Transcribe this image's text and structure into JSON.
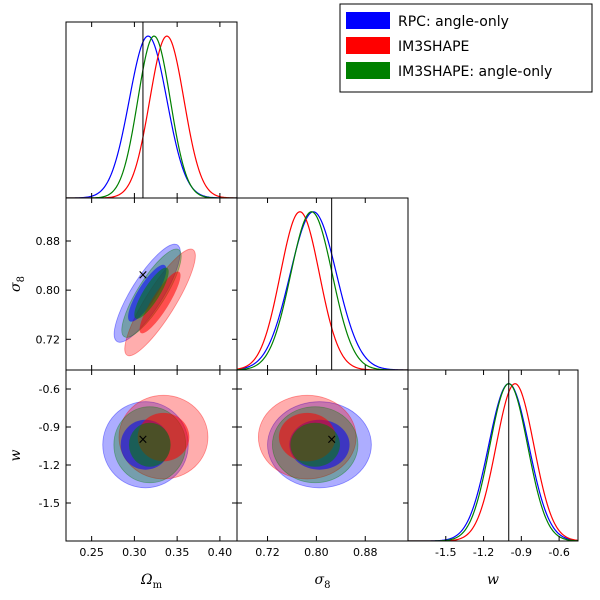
{
  "chart_data": {
    "type": "triangle-corner",
    "parameters": [
      {
        "id": "omega_m",
        "label": "Ω",
        "sub": "m",
        "range": [
          0.22,
          0.42
        ],
        "ticks": [
          "0.25",
          "0.30",
          "0.35",
          "0.40"
        ],
        "truth": 0.31
      },
      {
        "id": "sigma_8",
        "label": "σ",
        "sub": "8",
        "range": [
          0.67,
          0.95
        ],
        "ticks": [
          "0.72",
          "0.80",
          "0.88"
        ],
        "truth": 0.825
      },
      {
        "id": "w",
        "label": "w",
        "sub": "",
        "range": [
          -1.8,
          -0.45
        ],
        "ticks": [
          "-1.5",
          "-1.2",
          "-0.9",
          "-0.6"
        ],
        "truth": -1.0
      }
    ],
    "series": [
      {
        "name": "RPC: angle-only",
        "color": "#0000ff",
        "means": [
          0.316,
          0.795,
          -1.0
        ],
        "sds": [
          0.022,
          0.038,
          0.16
        ],
        "ellipses": [
          {
            "pair": [
              0,
              1
            ],
            "center": [
              0.315,
              0.795
            ],
            "a": [
              0.062,
              0.034
            ],
            "b": [
              0.017,
              0.01
            ],
            "angle": -58
          },
          {
            "pair": [
              0,
              2
            ],
            "center": [
              0.313,
              -1.04
            ],
            "a": [
              0.05,
              0.34
            ],
            "b": [
              0.026,
              0.18
            ],
            "angle": 0
          },
          {
            "pair": [
              1,
              2
            ],
            "center": [
              0.805,
              -1.04
            ],
            "a": [
              0.085,
              0.34
            ],
            "b": [
              0.045,
              0.18
            ],
            "angle": 0
          }
        ]
      },
      {
        "name": "IM3SHAPE",
        "color": "#ff0000",
        "means": [
          0.338,
          0.773,
          -0.95
        ],
        "sds": [
          0.02,
          0.032,
          0.15
        ],
        "ellipses": [
          {
            "pair": [
              0,
              1
            ],
            "center": [
              0.33,
              0.78
            ],
            "a": [
              0.068,
              0.036
            ],
            "b": [
              0.016,
              0.009
            ],
            "angle": -58
          },
          {
            "pair": [
              0,
              2
            ],
            "center": [
              0.334,
              -0.98
            ],
            "a": [
              0.052,
              0.33
            ],
            "b": [
              0.025,
              0.17
            ],
            "angle": 0
          },
          {
            "pair": [
              1,
              2
            ],
            "center": [
              0.785,
              -0.98
            ],
            "a": [
              0.08,
              0.33
            ],
            "b": [
              0.04,
              0.17
            ],
            "angle": 0
          }
        ]
      },
      {
        "name": "IM3SHAPE: angle-only",
        "color": "#008000",
        "means": [
          0.323,
          0.792,
          -1.0
        ],
        "sds": [
          0.019,
          0.034,
          0.15
        ],
        "ellipses": [
          {
            "pair": [
              0,
              1
            ],
            "center": [
              0.32,
              0.795
            ],
            "a": [
              0.056,
              0.03
            ],
            "b": [
              0.015,
              0.009
            ],
            "angle": -58
          },
          {
            "pair": [
              0,
              2
            ],
            "center": [
              0.318,
              -1.04
            ],
            "a": [
              0.042,
              0.3
            ],
            "b": [
              0.021,
              0.15
            ],
            "angle": 0
          },
          {
            "pair": [
              1,
              2
            ],
            "center": [
              0.798,
              -1.04
            ],
            "a": [
              0.07,
              0.3
            ],
            "b": [
              0.035,
              0.15
            ],
            "angle": 0
          }
        ]
      }
    ],
    "truth_marker": "×",
    "legend": {
      "placement": "top-right"
    }
  }
}
